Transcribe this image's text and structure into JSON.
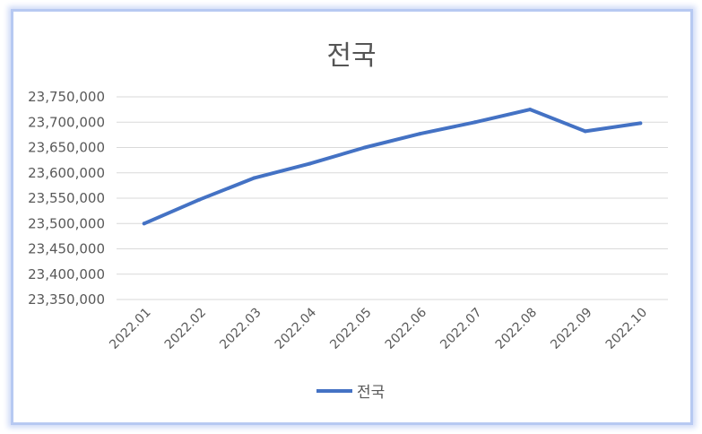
{
  "chart_data": {
    "type": "line",
    "title": "전국",
    "categories": [
      "2022.01",
      "2022.02",
      "2022.03",
      "2022.04",
      "2022.05",
      "2022.06",
      "2022.07",
      "2022.08",
      "2022.09",
      "2022.10"
    ],
    "series": [
      {
        "name": "전국",
        "color": "#4472C4",
        "values": [
          23500000,
          23547000,
          23590000,
          23618000,
          23650000,
          23677000,
          23700000,
          23725000,
          23682000,
          23698000
        ]
      }
    ],
    "ylim": [
      23350000,
      23750000
    ],
    "yticks": [
      "23,350,000",
      "23,400,000",
      "23,450,000",
      "23,500,000",
      "23,550,000",
      "23,600,000",
      "23,650,000",
      "23,700,000",
      "23,750,000"
    ],
    "grid": true,
    "legend": "bottom"
  }
}
